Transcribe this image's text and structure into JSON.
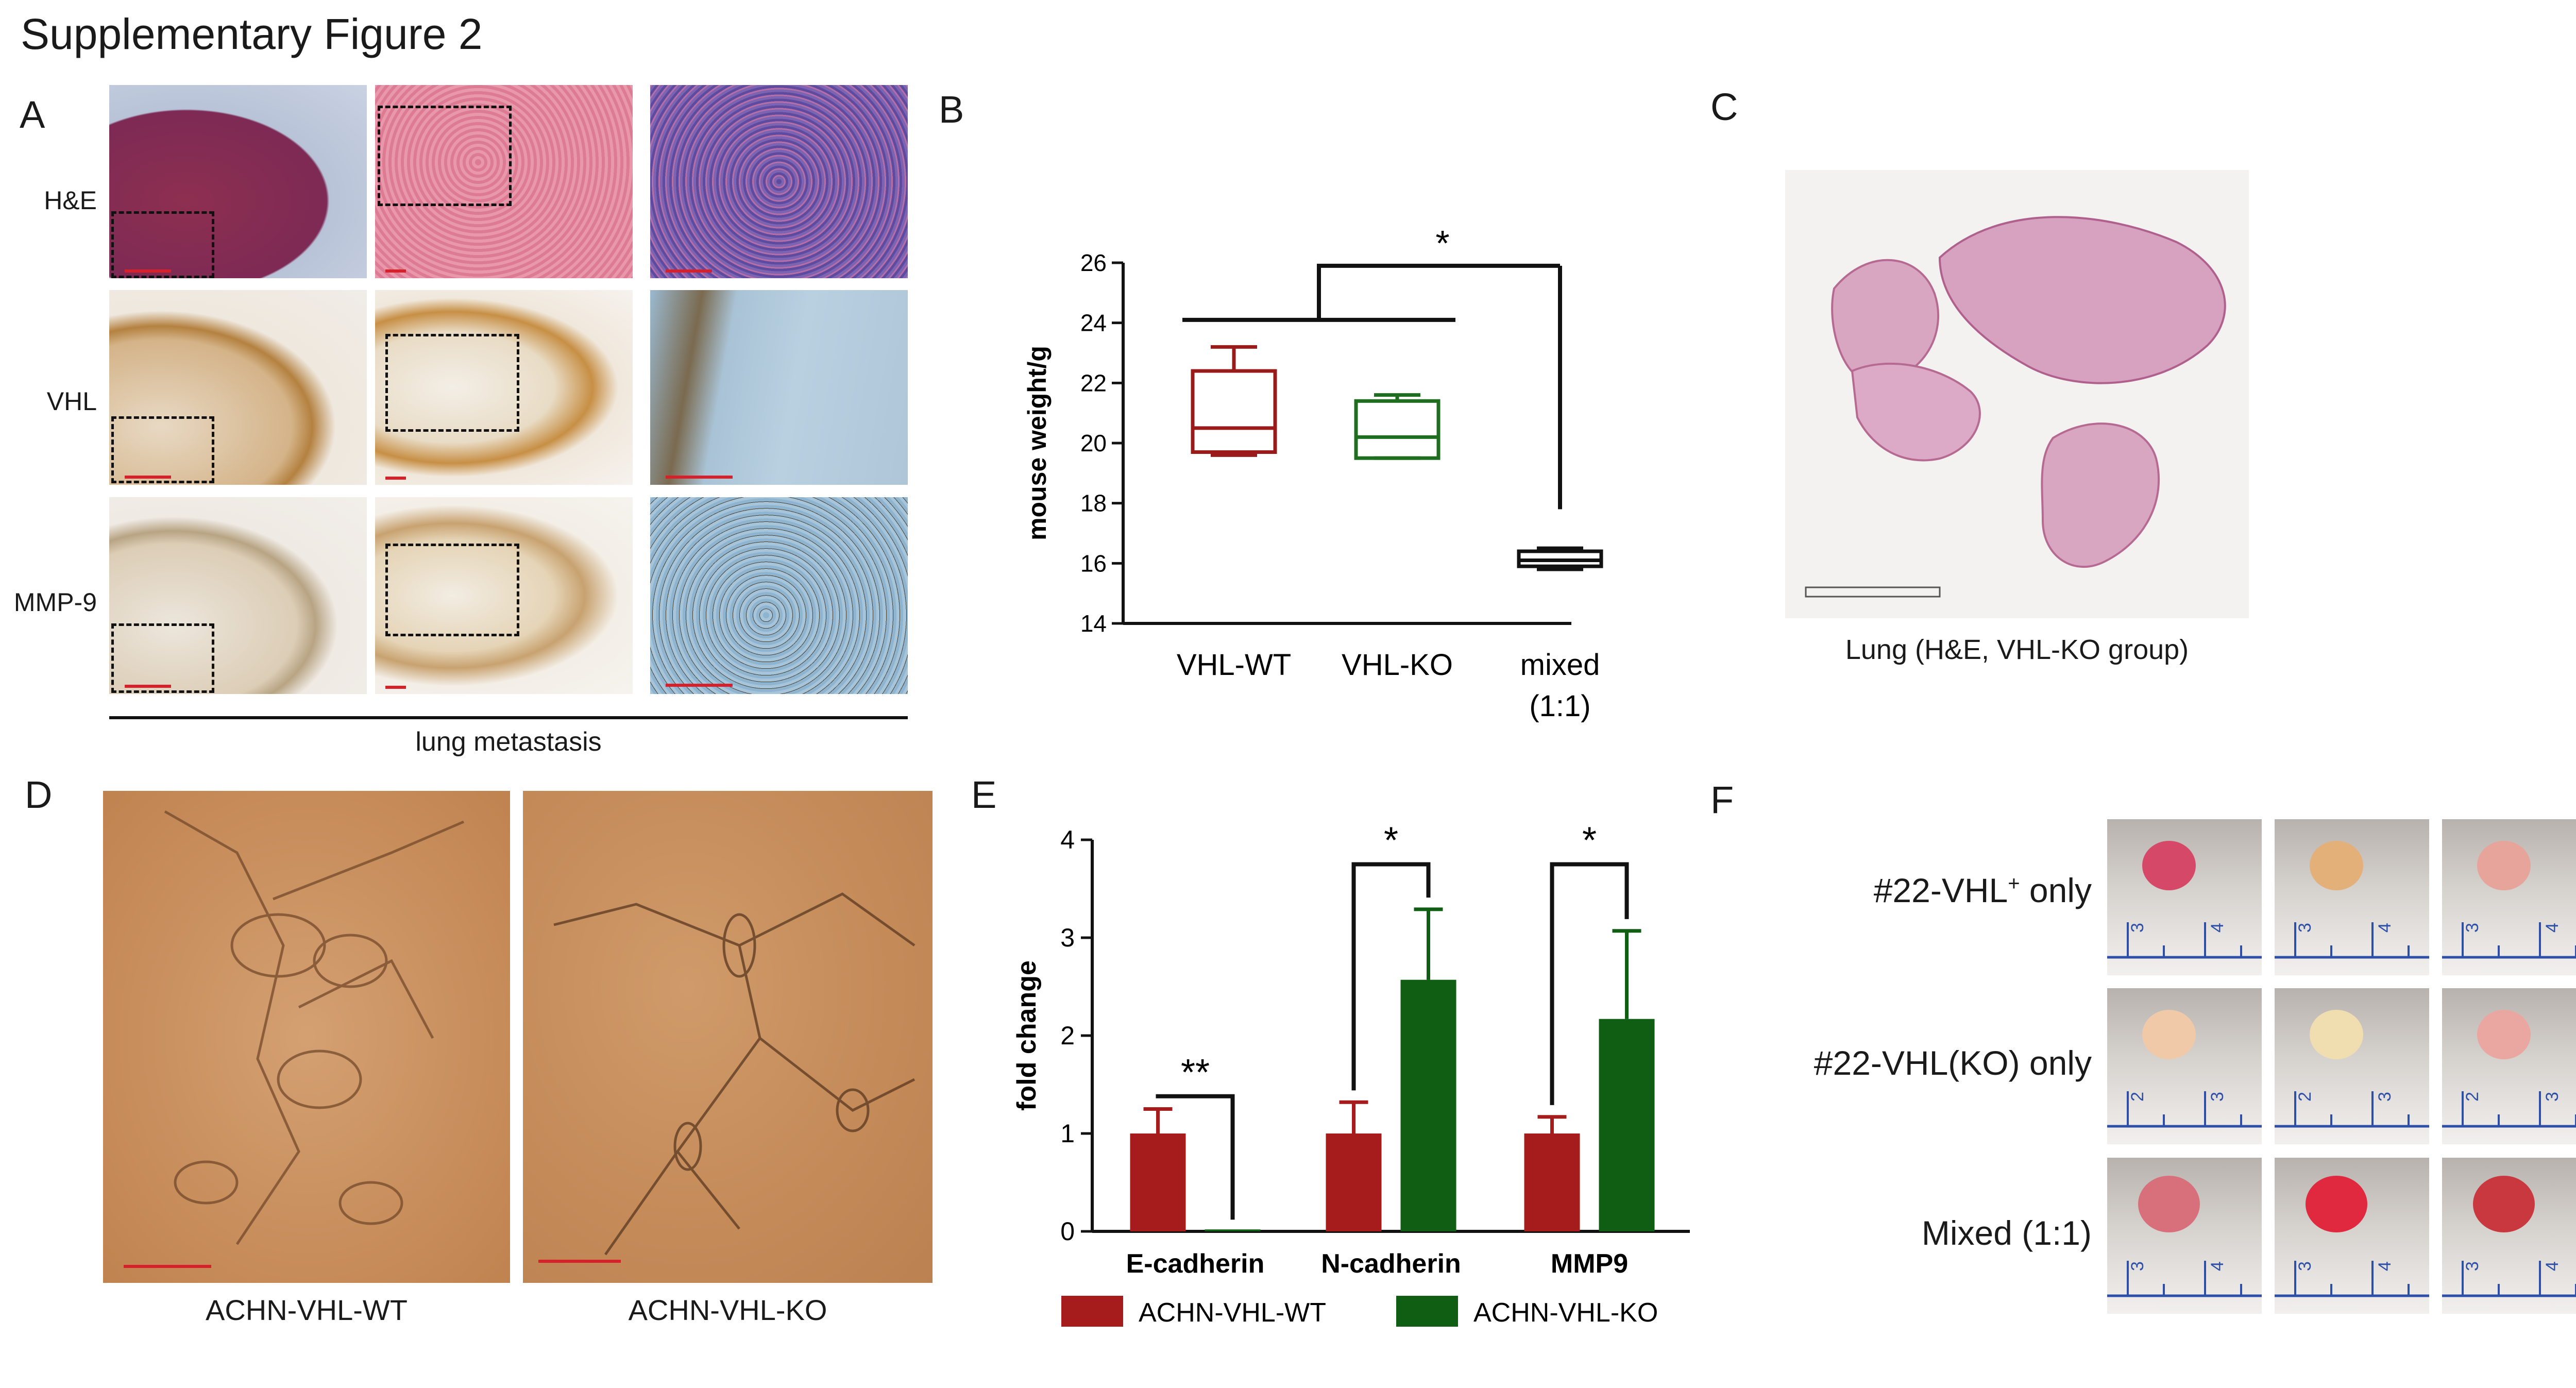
{
  "figure": {
    "title": "Supplementary Figure 2",
    "panels": {
      "a": "A",
      "b": "B",
      "c": "C",
      "d": "D",
      "e": "E",
      "f": "F"
    }
  },
  "panel_a": {
    "rows": [
      "H&E",
      "VHL",
      "MMP-9"
    ],
    "bottom_label": "lung metastasis",
    "colors": {
      "he": "#b03a5a",
      "he_light": "#d8708a",
      "ihc": "#c08a4a",
      "ihc_light": "#e8d8c0",
      "ihc_blue": "#8ab0cc"
    }
  },
  "panel_c": {
    "caption": "Lung (H&E, VHL-KO group)"
  },
  "panel_d": {
    "captions": [
      "ACHN-VHL-WT",
      "ACHN-VHL-KO"
    ],
    "color": "#c98a58"
  },
  "panel_f": {
    "rows": [
      "#22-VHL",
      "#22-VHL(KO) only",
      "Mixed (1:1)"
    ],
    "row0_sup": "+",
    "row0_tail": " only"
  },
  "chart_data": [
    {
      "type": "box",
      "ylabel": "mouse weight/g",
      "ylim": [
        14,
        26
      ],
      "yticks": [
        14,
        16,
        18,
        20,
        22,
        24,
        26
      ],
      "categories": [
        "VHL-WT",
        "VHL-KO",
        "mixed",
        "(1:1)"
      ],
      "series": [
        {
          "whisker_low": 19.6,
          "q1": 19.7,
          "median": 20.5,
          "q3": 22.4,
          "whisker_high": 23.2,
          "color": "#9b1b1b"
        },
        {
          "whisker_low": 19.5,
          "q1": 19.5,
          "median": 20.2,
          "q3": 21.4,
          "whisker_high": 21.6,
          "color": "#1f6e1f"
        },
        {
          "whisker_low": 15.8,
          "q1": 15.9,
          "median": 16.1,
          "q3": 16.4,
          "whisker_high": 16.5,
          "color": "#111111"
        }
      ],
      "annotations": [
        "*"
      ]
    },
    {
      "type": "bar",
      "ylabel": "fold change",
      "ylim": [
        0,
        4
      ],
      "yticks": [
        0,
        1,
        2,
        3,
        4
      ],
      "categories": [
        "E-cadherin",
        "N-cadherin",
        "MMP9"
      ],
      "series": [
        {
          "name": "ACHN-VHL-WT",
          "values": [
            1.0,
            1.0,
            1.0
          ],
          "errors": [
            0.25,
            0.32,
            0.17
          ],
          "color": "#a61b1b"
        },
        {
          "name": "ACHN-VHL-KO",
          "values": [
            0.02,
            2.57,
            2.17
          ],
          "errors": [
            0.0,
            0.72,
            0.9
          ],
          "color": "#0f5e14"
        }
      ],
      "annotations": [
        "**",
        "*",
        "*"
      ]
    }
  ]
}
